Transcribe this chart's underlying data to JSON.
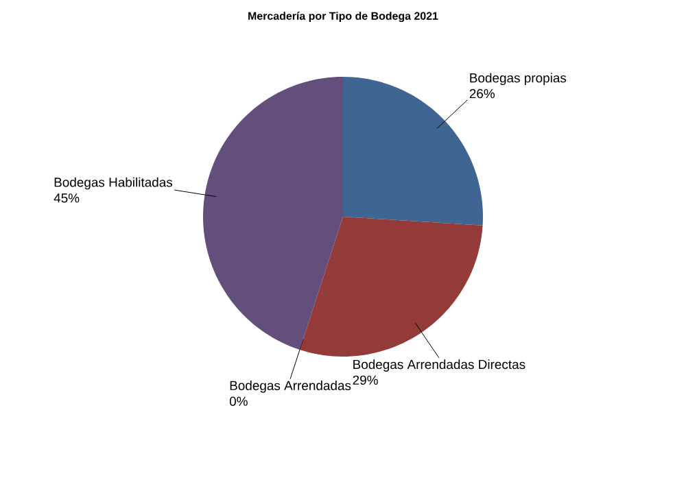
{
  "chart_data": {
    "type": "pie",
    "title": "Mercadería por Tipo de Bodega 2021",
    "categories": [
      "Bodegas propias",
      "Bodegas Arrendadas Directas",
      "Bodegas Arrendadas",
      "Bodegas Habilitadas"
    ],
    "values": [
      26,
      29,
      0,
      45
    ],
    "value_labels": [
      "26%",
      "29%",
      "0%",
      "45%"
    ],
    "colors": [
      "#3f6592",
      "#943b3a",
      "#77933c",
      "#644e7c"
    ]
  }
}
